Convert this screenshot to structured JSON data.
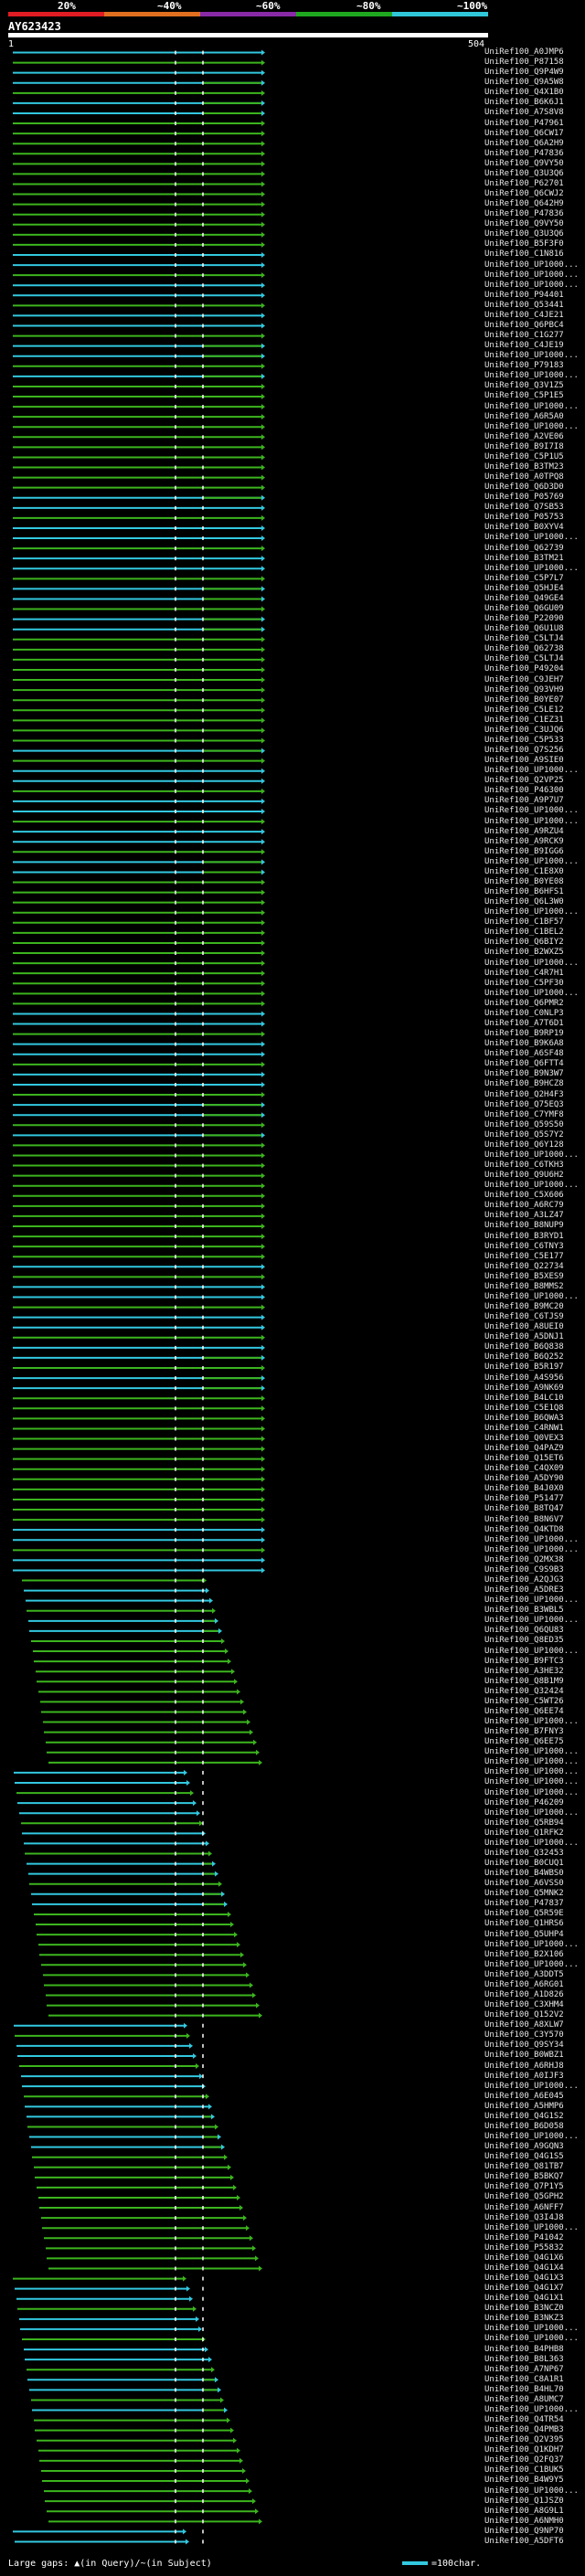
{
  "header": {
    "thresholds": [
      "20%",
      "~40%",
      "~60%",
      "~80%",
      "~100%"
    ],
    "colors": {
      "band1": "#e01c24",
      "band2": "#e07020",
      "band3": "#8a2aa8",
      "band4": "#1fa81f",
      "band5": "#30c7d9"
    },
    "query_id": "AY623423",
    "query_start": "1",
    "query_end": "504"
  },
  "hit_colors": {
    "cyan": "#32c8e0",
    "green": "#3cb41e",
    "white": "#ffffff"
  },
  "hits": [
    "UniRef100_A0JMP6",
    "UniRef100_P87158",
    "UniRef100_Q9P4W9",
    "UniRef100_Q9A5W8",
    "UniRef100_Q4X1B0",
    "UniRef100_B6K6J1",
    "UniRef100_A7S8V8",
    "UniRef100_P47961",
    "UniRef100_Q6CW17",
    "UniRef100_Q6A2H9",
    "UniRef100_P47836",
    "UniRef100_Q9VY50",
    "UniRef100_Q3U3Q6",
    "UniRef100_P62701",
    "UniRef100_Q6CWJ2",
    "UniRef100_Q642H9",
    "UniRef100_P47836",
    "UniRef100_Q9VY50",
    "UniRef100_Q3U3Q6",
    "UniRef100_B5F3F0",
    "UniRef100_C1N816",
    "UniRef100_UP1000...",
    "UniRef100_UP1000...",
    "UniRef100_UP1000...",
    "UniRef100_P94401",
    "UniRef100_Q53441",
    "UniRef100_C4JE21",
    "UniRef100_Q6PBC4",
    "UniRef100_C1G277",
    "UniRef100_C4JE19",
    "UniRef100_UP1000...",
    "UniRef100_P79183",
    "UniRef100_UP1000...",
    "UniRef100_Q3V1Z5",
    "UniRef100_C5P1E5",
    "UniRef100_UP1000...",
    "UniRef100_A6R5A0",
    "UniRef100_UP1000...",
    "UniRef100_A2VE06",
    "UniRef100_B9I7I8",
    "UniRef100_C5P1U5",
    "UniRef100_B3TM23",
    "UniRef100_A0TPQ8",
    "UniRef100_Q6D3D0",
    "UniRef100_P05769",
    "UniRef100_Q7SB53",
    "UniRef100_P05753",
    "UniRef100_B0XYV4",
    "UniRef100_UP1000...",
    "UniRef100_Q62739",
    "UniRef100_B3TM21",
    "UniRef100_UP1000...",
    "UniRef100_C5P7L7",
    "UniRef100_Q5HJE4",
    "UniRef100_Q49GE4",
    "UniRef100_Q6GU09",
    "UniRef100_P22090",
    "UniRef100_Q6U1U8",
    "UniRef100_C5LTJ4",
    "UniRef100_Q62738",
    "UniRef100_C5LTJ4",
    "UniRef100_P49204",
    "UniRef100_C9JEH7",
    "UniRef100_Q93VH9",
    "UniRef100_B0YE07",
    "UniRef100_C5LE12",
    "UniRef100_C1EZ31",
    "UniRef100_C3UJQ6",
    "UniRef100_C5P533",
    "UniRef100_Q7S256",
    "UniRef100_A9SIE0",
    "UniRef100_UP1000...",
    "UniRef100_Q2VP25",
    "UniRef100_P46300",
    "UniRef100_A9P7U7",
    "UniRef100_UP1000...",
    "UniRef100_UP1000...",
    "UniRef100_A9RZU4",
    "UniRef100_A9RCK9",
    "UniRef100_B9IGG6",
    "UniRef100_UP1000...",
    "UniRef100_C1E8X0",
    "UniRef100_B0YE08",
    "UniRef100_B6HFS1",
    "UniRef100_Q6L3W0",
    "UniRef100_UP1000...",
    "UniRef100_C1BF57",
    "UniRef100_C1BEL2",
    "UniRef100_Q6BIY2",
    "UniRef100_B2WXZ5",
    "UniRef100_UP1000...",
    "UniRef100_C4R7H1",
    "UniRef100_C5PF30",
    "UniRef100_UP1000...",
    "UniRef100_Q6PMR2",
    "UniRef100_C0NLP3",
    "UniRef100_A7T6D1",
    "UniRef100_B9RP19",
    "UniRef100_B9K6A8",
    "UniRef100_A6SF48",
    "UniRef100_Q6FTT4",
    "UniRef100_B9N3W7",
    "UniRef100_B9HCZ8",
    "UniRef100_Q2H4F3",
    "UniRef100_Q75EQ3",
    "UniRef100_C7YMF8",
    "UniRef100_Q59S50",
    "UniRef100_Q5S7Y2",
    "UniRef100_Q6Y128",
    "UniRef100_UP1000...",
    "UniRef100_C6TKH3",
    "UniRef100_Q9U6H2",
    "UniRef100_UP1000...",
    "UniRef100_C5X606",
    "UniRef100_A6RC79",
    "UniRef100_A3LZ47",
    "UniRef100_B8NUP9",
    "UniRef100_B3RYD1",
    "UniRef100_C6TNY3",
    "UniRef100_C5E177",
    "UniRef100_Q22734",
    "UniRef100_B5XES9",
    "UniRef100_B8MMS2",
    "UniRef100_UP1000...",
    "UniRef100_B9MC20",
    "UniRef100_C6TJS9",
    "UniRef100_A8UEI0",
    "UniRef100_A5DNJ1",
    "UniRef100_B6Q838",
    "UniRef100_B6Q252",
    "UniRef100_B5R197",
    "UniRef100_A4S956",
    "UniRef100_A9NK69",
    "UniRef100_B4LC10",
    "UniRef100_C5E1Q8",
    "UniRef100_B6QWA3",
    "UniRef100_C4RNW1",
    "UniRef100_Q0VEX3",
    "UniRef100_Q4PAZ9",
    "UniRef100_Q15ET6",
    "UniRef100_C4QX09",
    "UniRef100_A5DY90",
    "UniRef100_B4J0X0",
    "UniRef100_P51477",
    "UniRef100_B8TQ47",
    "UniRef100_B8N6V7",
    "UniRef100_Q4KTD8",
    "UniRef100_UP1000...",
    "UniRef100_UP1000...",
    "UniRef100_Q2MX38",
    "UniRef100_C9S9B3",
    "UniRef100_A2QJG3",
    "UniRef100_A5DRE3",
    "UniRef100_UP1000...",
    "UniRef100_B3WBL5",
    "UniRef100_UP1000...",
    "UniRef100_Q6QU83",
    "UniRef100_Q8ED35",
    "UniRef100_UP1000...",
    "UniRef100_B9FTC3",
    "UniRef100_A3HE32",
    "UniRef100_Q8B1M9",
    "UniRef100_Q32424",
    "UniRef100_C5WT26",
    "UniRef100_Q6EE74",
    "UniRef100_UP1000...",
    "UniRef100_B7FNY3",
    "UniRef100_Q6EE75",
    "UniRef100_UP1000...",
    "UniRef100_UP1000...",
    "UniRef100_UP1000...",
    "UniRef100_UP1000...",
    "UniRef100_UP1000...",
    "UniRef100_P46209",
    "UniRef100_UP1000...",
    "UniRef100_Q5RB94",
    "UniRef100_Q1RFK2",
    "UniRef100_UP1000...",
    "UniRef100_Q32453",
    "UniRef100_B0CUQ1",
    "UniRef100_B4WBS0",
    "UniRef100_A6VSS0",
    "UniRef100_Q5MNK2",
    "UniRef100_P47837",
    "UniRef100_Q5R59E",
    "UniRef100_Q1HRS6",
    "UniRef100_Q5UHP4",
    "UniRef100_UP1000...",
    "UniRef100_B2X106",
    "UniRef100_UP1000...",
    "UniRef100_A3DDT5",
    "UniRef100_A6RG01",
    "UniRef100_A1D826",
    "UniRef100_C3XHM4",
    "UniRef100_Q152V2",
    "UniRef100_A8XLW7",
    "UniRef100_C3Y570",
    "UniRef100_Q9SY34",
    "UniRef100_B0WBZ1",
    "UniRef100_A6RHJ8",
    "UniRef100_A0IJF3",
    "UniRef100_UP1000...",
    "UniRef100_A6E045",
    "UniRef100_A5HMP6",
    "UniRef100_Q4G1S2",
    "UniRef100_B6D058",
    "UniRef100_UP1000...",
    "UniRef100_A9GQN3",
    "UniRef100_Q4G1S5",
    "UniRef100_Q81TB7",
    "UniRef100_B5BKQ7",
    "UniRef100_Q7P1Y5",
    "UniRef100_Q5GPH2",
    "UniRef100_A6NFF7",
    "UniRef100_Q3I4J8",
    "UniRef100_UP1000...",
    "UniRef100_P41042",
    "UniRef100_P55832",
    "UniRef100_Q4G1X6",
    "UniRef100_Q4G1X4",
    "UniRef100_Q4G1X3",
    "UniRef100_Q4G1X7",
    "UniRef100_Q4G1X1",
    "UniRef100_B3NCZ0",
    "UniRef100_B3NKZ3",
    "UniRef100_UP1000...",
    "UniRef100_UP1000...",
    "UniRef100_B4PHB8",
    "UniRef100_B8L363",
    "UniRef100_A7NP67",
    "UniRef100_C8A1R1",
    "UniRef100_B4HL70",
    "UniRef100_A8UMC7",
    "UniRef100_UP1000...",
    "UniRef100_Q4TR54",
    "UniRef100_Q4PMB3",
    "UniRef100_Q2V395",
    "UniRef100_Q1KDH7",
    "UniRef100_Q2FQ37",
    "UniRef100_C1BUK5",
    "UniRef100_B4W9Y5",
    "UniRef100_UP1000...",
    "UniRef100_Q1JSZ0",
    "UniRef100_A8G9L1",
    "UniRef100_A6NMH0",
    "UniRef100_Q9NP70",
    "UniRef100_A5DFT6"
  ],
  "footer": {
    "large_gaps_note": "Large gaps: ▲(in Query)/~(in Subject)",
    "legend_label": "=100char."
  }
}
